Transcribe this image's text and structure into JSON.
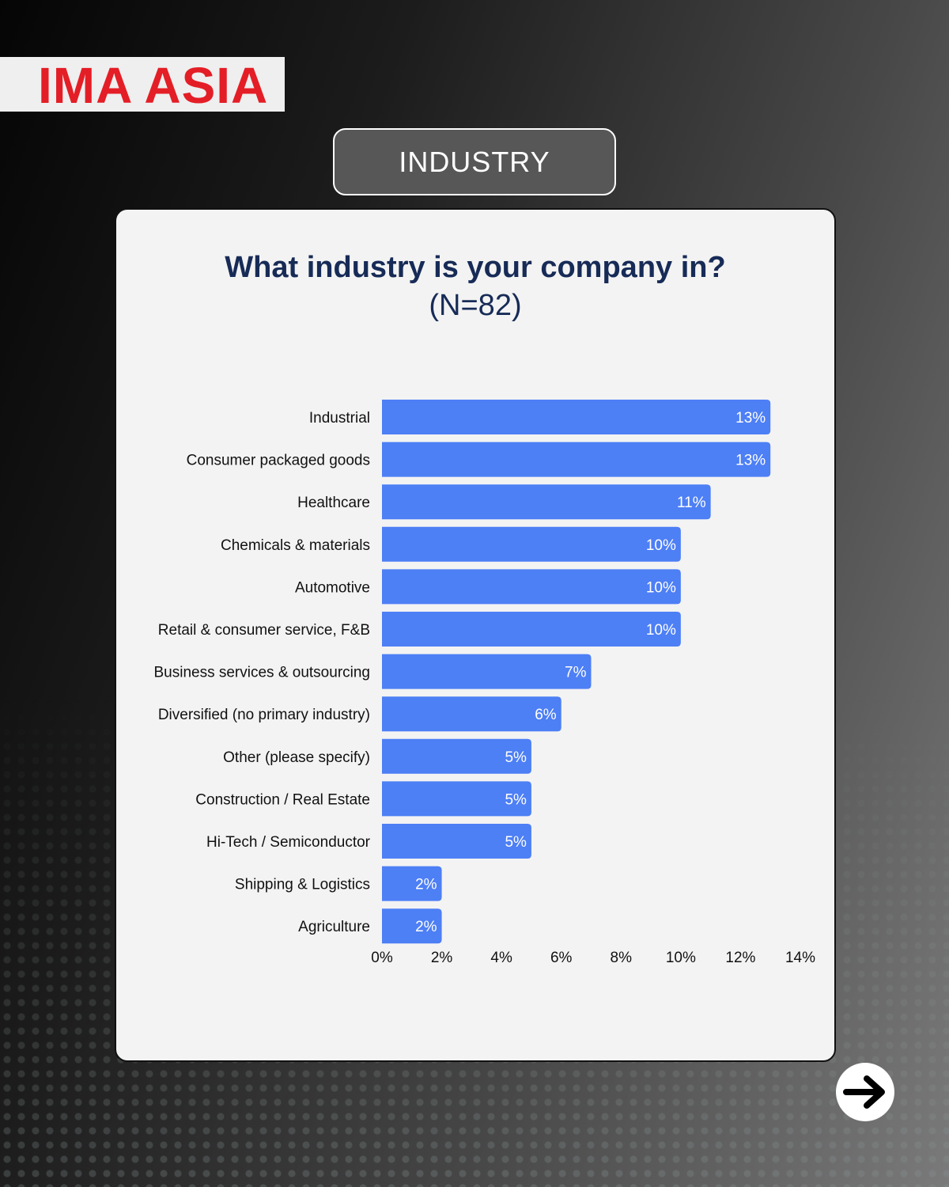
{
  "brand": {
    "logo_text": "IMA ASIA",
    "logo_color": "#e41e26"
  },
  "section": {
    "label": "INDUSTRY"
  },
  "navigation": {
    "next_icon": "arrow-right-icon"
  },
  "colors": {
    "bar": "#4d7ff5",
    "title": "#172b57"
  },
  "chart_data": {
    "type": "bar",
    "orientation": "horizontal",
    "title": "What industry is your company in?",
    "subtitle": "(N=82)",
    "categories": [
      "Industrial",
      "Consumer packaged goods",
      "Healthcare",
      "Chemicals & materials",
      "Automotive",
      "Retail & consumer service, F&B",
      "Business services & outsourcing",
      "Diversified (no primary industry)",
      "Other (please specify)",
      "Construction / Real Estate",
      "Hi-Tech / Semiconductor",
      "Shipping & Logistics",
      "Agriculture"
    ],
    "values": [
      13,
      13,
      11,
      10,
      10,
      10,
      7,
      6,
      5,
      5,
      5,
      2,
      2
    ],
    "data_labels": [
      "13%",
      "13%",
      "11%",
      "10%",
      "10%",
      "10%",
      "7%",
      "6%",
      "5%",
      "5%",
      "5%",
      "2%",
      "2%"
    ],
    "xlim": [
      0,
      14
    ],
    "x_ticks": [
      0,
      2,
      4,
      6,
      8,
      10,
      12,
      14
    ],
    "x_tick_labels": [
      "0%",
      "2%",
      "4%",
      "6%",
      "8%",
      "10%",
      "12%",
      "14%"
    ],
    "grid": false,
    "legend": "none"
  }
}
